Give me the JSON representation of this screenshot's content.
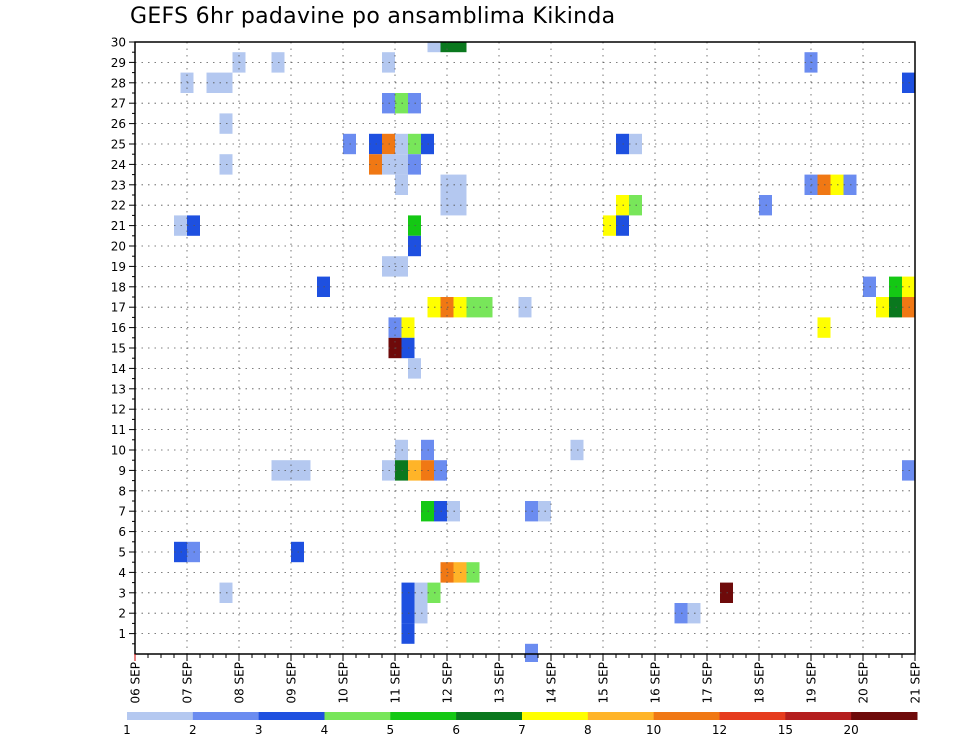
{
  "chart_data": {
    "type": "heatmap",
    "title": "GEFS 6hr padavine po ansamblima Kikinda",
    "x_tick_labels": [
      "06 SEP",
      "07 SEP",
      "08 SEP",
      "09 SEP",
      "10 SEP",
      "11 SEP",
      "12 SEP",
      "13 SEP",
      "14 SEP",
      "15 SEP",
      "16 SEP",
      "17 SEP",
      "18 SEP",
      "19 SEP",
      "20 SEP",
      "21 SEP"
    ],
    "y_tick_labels": [
      "1",
      "2",
      "3",
      "4",
      "5",
      "6",
      "7",
      "8",
      "9",
      "10",
      "11",
      "12",
      "13",
      "14",
      "15",
      "16",
      "17",
      "18",
      "19",
      "20",
      "21",
      "22",
      "23",
      "24",
      "25",
      "26",
      "27",
      "28",
      "29",
      "30"
    ],
    "x_range": [
      0,
      60
    ],
    "y_range": [
      0,
      30
    ],
    "grid": true,
    "colorbar": {
      "placement": "bottom",
      "labels": [
        "1",
        "2",
        "3",
        "4",
        "5",
        "6",
        "7",
        "8",
        "10",
        "12",
        "15",
        "20"
      ],
      "colors": [
        "#b4c8f0",
        "#6b8cf0",
        "#1e50e0",
        "#78e65a",
        "#14c814",
        "#0a781e",
        "#ffff00",
        "#ffb428",
        "#f07814",
        "#e63c1e",
        "#b41e1e",
        "#6e0a0a"
      ]
    },
    "cells": [
      {
        "x": 23,
        "y": 30,
        "c": 1
      },
      {
        "x": 24,
        "y": 30,
        "c": 6
      },
      {
        "x": 25,
        "y": 30,
        "c": 6
      },
      {
        "x": 8,
        "y": 29,
        "c": 1
      },
      {
        "x": 11,
        "y": 29,
        "c": 1
      },
      {
        "x": 19.5,
        "y": 29,
        "c": 1
      },
      {
        "x": 52,
        "y": 29,
        "c": 2
      },
      {
        "x": 4,
        "y": 28,
        "c": 1
      },
      {
        "x": 6,
        "y": 28,
        "c": 1
      },
      {
        "x": 7,
        "y": 28,
        "c": 1
      },
      {
        "x": 59.5,
        "y": 28,
        "c": 3
      },
      {
        "x": 19.5,
        "y": 27,
        "c": 2
      },
      {
        "x": 20.5,
        "y": 27,
        "c": 4
      },
      {
        "x": 21.5,
        "y": 27,
        "c": 2
      },
      {
        "x": 7,
        "y": 26,
        "c": 1
      },
      {
        "x": 16.5,
        "y": 25,
        "c": 2
      },
      {
        "x": 18.5,
        "y": 25,
        "c": 3
      },
      {
        "x": 19.5,
        "y": 25,
        "c": 9
      },
      {
        "x": 20.5,
        "y": 25,
        "c": 1
      },
      {
        "x": 21.5,
        "y": 25,
        "c": 4
      },
      {
        "x": 22.5,
        "y": 25,
        "c": 3
      },
      {
        "x": 37.5,
        "y": 25,
        "c": 3
      },
      {
        "x": 38.5,
        "y": 25,
        "c": 1
      },
      {
        "x": 7,
        "y": 24,
        "c": 1
      },
      {
        "x": 18.5,
        "y": 24,
        "c": 9
      },
      {
        "x": 19.5,
        "y": 24,
        "c": 1
      },
      {
        "x": 20.5,
        "y": 24,
        "c": 1
      },
      {
        "x": 21.5,
        "y": 24,
        "c": 2
      },
      {
        "x": 20.5,
        "y": 23,
        "c": 1
      },
      {
        "x": 24,
        "y": 23,
        "c": 1
      },
      {
        "x": 25,
        "y": 23,
        "c": 1
      },
      {
        "x": 52,
        "y": 23,
        "c": 2
      },
      {
        "x": 53,
        "y": 23,
        "c": 9
      },
      {
        "x": 54,
        "y": 23,
        "c": 7
      },
      {
        "x": 55,
        "y": 23,
        "c": 2
      },
      {
        "x": 24,
        "y": 22,
        "c": 1
      },
      {
        "x": 25,
        "y": 22,
        "c": 1
      },
      {
        "x": 37.5,
        "y": 22,
        "c": 7
      },
      {
        "x": 38.5,
        "y": 22,
        "c": 4
      },
      {
        "x": 48.5,
        "y": 22,
        "c": 2
      },
      {
        "x": 3.5,
        "y": 21,
        "c": 1
      },
      {
        "x": 4.5,
        "y": 21,
        "c": 3
      },
      {
        "x": 21.5,
        "y": 21,
        "c": 5
      },
      {
        "x": 36.5,
        "y": 21,
        "c": 7
      },
      {
        "x": 37.5,
        "y": 21,
        "c": 3
      },
      {
        "x": 21.5,
        "y": 20,
        "c": 3
      },
      {
        "x": 19.5,
        "y": 19,
        "c": 1
      },
      {
        "x": 20.5,
        "y": 19,
        "c": 1
      },
      {
        "x": 14.5,
        "y": 18,
        "c": 3
      },
      {
        "x": 56.5,
        "y": 18,
        "c": 2
      },
      {
        "x": 58.5,
        "y": 18,
        "c": 5
      },
      {
        "x": 59.5,
        "y": 18,
        "c": 7
      },
      {
        "x": 23,
        "y": 17,
        "c": 7
      },
      {
        "x": 24,
        "y": 17,
        "c": 9
      },
      {
        "x": 25,
        "y": 17,
        "c": 7
      },
      {
        "x": 26,
        "y": 17,
        "c": 4
      },
      {
        "x": 27,
        "y": 17,
        "c": 4
      },
      {
        "x": 30,
        "y": 17,
        "c": 1
      },
      {
        "x": 57.5,
        "y": 17,
        "c": 7
      },
      {
        "x": 58.5,
        "y": 17,
        "c": 6
      },
      {
        "x": 59.5,
        "y": 17,
        "c": 9
      },
      {
        "x": 20,
        "y": 16,
        "c": 2
      },
      {
        "x": 21,
        "y": 16,
        "c": 7
      },
      {
        "x": 53,
        "y": 16,
        "c": 7
      },
      {
        "x": 20,
        "y": 15,
        "c": 12
      },
      {
        "x": 21,
        "y": 15,
        "c": 3
      },
      {
        "x": 21.5,
        "y": 14,
        "c": 1
      },
      {
        "x": 20.5,
        "y": 10,
        "c": 1
      },
      {
        "x": 22.5,
        "y": 10,
        "c": 2
      },
      {
        "x": 34,
        "y": 10,
        "c": 1
      },
      {
        "x": 11,
        "y": 9,
        "c": 1
      },
      {
        "x": 12,
        "y": 9,
        "c": 1
      },
      {
        "x": 13,
        "y": 9,
        "c": 1
      },
      {
        "x": 19.5,
        "y": 9,
        "c": 1
      },
      {
        "x": 20.5,
        "y": 9,
        "c": 6
      },
      {
        "x": 21.5,
        "y": 9,
        "c": 8
      },
      {
        "x": 22.5,
        "y": 9,
        "c": 9
      },
      {
        "x": 23.5,
        "y": 9,
        "c": 2
      },
      {
        "x": 59.5,
        "y": 9,
        "c": 2
      },
      {
        "x": 22.5,
        "y": 7,
        "c": 5
      },
      {
        "x": 23.5,
        "y": 7,
        "c": 3
      },
      {
        "x": 24.5,
        "y": 7,
        "c": 1
      },
      {
        "x": 30.5,
        "y": 7,
        "c": 2
      },
      {
        "x": 31.5,
        "y": 7,
        "c": 1
      },
      {
        "x": 3.5,
        "y": 5,
        "c": 3
      },
      {
        "x": 4.5,
        "y": 5,
        "c": 2
      },
      {
        "x": 12.5,
        "y": 5,
        "c": 3
      },
      {
        "x": 24,
        "y": 4,
        "c": 9
      },
      {
        "x": 25,
        "y": 4,
        "c": 8
      },
      {
        "x": 26,
        "y": 4,
        "c": 4
      },
      {
        "x": 7,
        "y": 3,
        "c": 1
      },
      {
        "x": 21,
        "y": 3,
        "c": 3
      },
      {
        "x": 22,
        "y": 3,
        "c": 1
      },
      {
        "x": 23,
        "y": 3,
        "c": 4
      },
      {
        "x": 45.5,
        "y": 3,
        "c": 12
      },
      {
        "x": 21,
        "y": 2,
        "c": 3
      },
      {
        "x": 22,
        "y": 2,
        "c": 1
      },
      {
        "x": 42,
        "y": 2,
        "c": 2
      },
      {
        "x": 43,
        "y": 2,
        "c": 1
      },
      {
        "x": 21,
        "y": 1,
        "c": 3
      },
      {
        "x": 30.5,
        "y": 0,
        "c": 2
      }
    ]
  }
}
